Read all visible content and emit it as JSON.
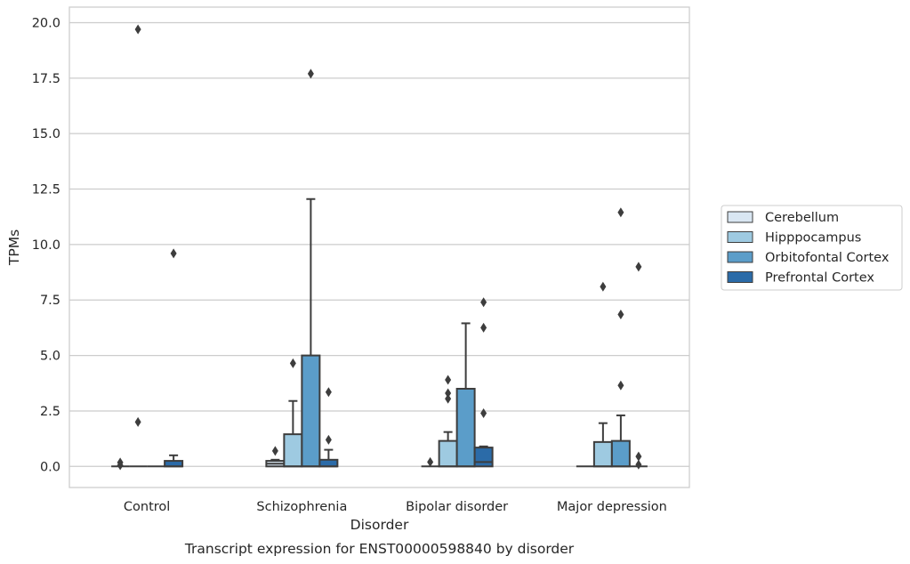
{
  "chart_data": {
    "type": "box",
    "title": "",
    "caption": "Transcript expression for ENST00000598840 by disorder",
    "xlabel": "Disorder",
    "ylabel": "TPMs",
    "ylim": [
      -0.95,
      20.7
    ],
    "yticks": [
      "0.0",
      "2.5",
      "5.0",
      "7.5",
      "10.0",
      "12.5",
      "15.0",
      "17.5",
      "20.0"
    ],
    "grid": true,
    "legend_position": "right",
    "categories": [
      "Control",
      "Schizophrenia",
      "Bipolar disorder",
      "Major depression"
    ],
    "series": [
      {
        "name": "Cerebellum",
        "color": "#d9e6f2",
        "boxes": [
          {
            "q1": 0,
            "median": 0,
            "q3": 0,
            "whisker_low": 0,
            "whisker_high": 0,
            "outliers": [
              0.18,
              0.05
            ]
          },
          {
            "q1": 0,
            "median": 0.12,
            "q3": 0.25,
            "whisker_low": 0,
            "whisker_high": 0.3,
            "outliers": [
              0.7
            ]
          },
          {
            "q1": 0,
            "median": 0,
            "q3": 0,
            "whisker_low": 0,
            "whisker_high": 0,
            "outliers": [
              0.2
            ]
          },
          {
            "q1": 0,
            "median": 0,
            "q3": 0,
            "whisker_low": 0,
            "whisker_high": 0,
            "outliers": []
          }
        ]
      },
      {
        "name": "Hipppocampus",
        "color": "#9ecae1",
        "boxes": [
          {
            "q1": 0,
            "median": 0,
            "q3": 0,
            "whisker_low": 0,
            "whisker_high": 0,
            "outliers": [
              19.7,
              2.0
            ]
          },
          {
            "q1": 0,
            "median": 0,
            "q3": 1.45,
            "whisker_low": 0,
            "whisker_high": 2.95,
            "outliers": [
              4.65
            ]
          },
          {
            "q1": 0,
            "median": 0,
            "q3": 1.15,
            "whisker_low": 0,
            "whisker_high": 1.55,
            "outliers": [
              3.9,
              3.3,
              3.05
            ]
          },
          {
            "q1": 0,
            "median": 0,
            "q3": 1.1,
            "whisker_low": 0,
            "whisker_high": 1.95,
            "outliers": [
              8.1
            ]
          }
        ]
      },
      {
        "name": "Orbitofontal Cortex",
        "color": "#5b9dc9",
        "boxes": [
          {
            "q1": 0,
            "median": 0,
            "q3": 0,
            "whisker_low": 0,
            "whisker_high": 0,
            "outliers": []
          },
          {
            "q1": 0,
            "median": 0,
            "q3": 5.0,
            "whisker_low": 0,
            "whisker_high": 12.05,
            "outliers": [
              17.7
            ]
          },
          {
            "q1": 0,
            "median": 0,
            "q3": 3.5,
            "whisker_low": 0,
            "whisker_high": 6.45,
            "outliers": []
          },
          {
            "q1": 0,
            "median": 0,
            "q3": 1.15,
            "whisker_low": 0,
            "whisker_high": 2.3,
            "outliers": [
              11.45,
              6.85,
              3.65
            ]
          }
        ]
      },
      {
        "name": "Prefrontal Cortex",
        "color": "#2b6ba8",
        "boxes": [
          {
            "q1": 0,
            "median": 0,
            "q3": 0.25,
            "whisker_low": 0,
            "whisker_high": 0.5,
            "outliers": [
              9.6
            ]
          },
          {
            "q1": 0,
            "median": 0,
            "q3": 0.3,
            "whisker_low": 0,
            "whisker_high": 0.75,
            "outliers": [
              3.35,
              1.2
            ]
          },
          {
            "q1": 0,
            "median": 0.2,
            "q3": 0.85,
            "whisker_low": 0,
            "whisker_high": 0.9,
            "outliers": [
              7.4,
              6.25,
              2.4
            ]
          },
          {
            "q1": 0,
            "median": 0,
            "q3": 0,
            "whisker_low": 0,
            "whisker_high": 0,
            "outliers": [
              9.0,
              0.45,
              0.08
            ]
          }
        ]
      }
    ]
  }
}
